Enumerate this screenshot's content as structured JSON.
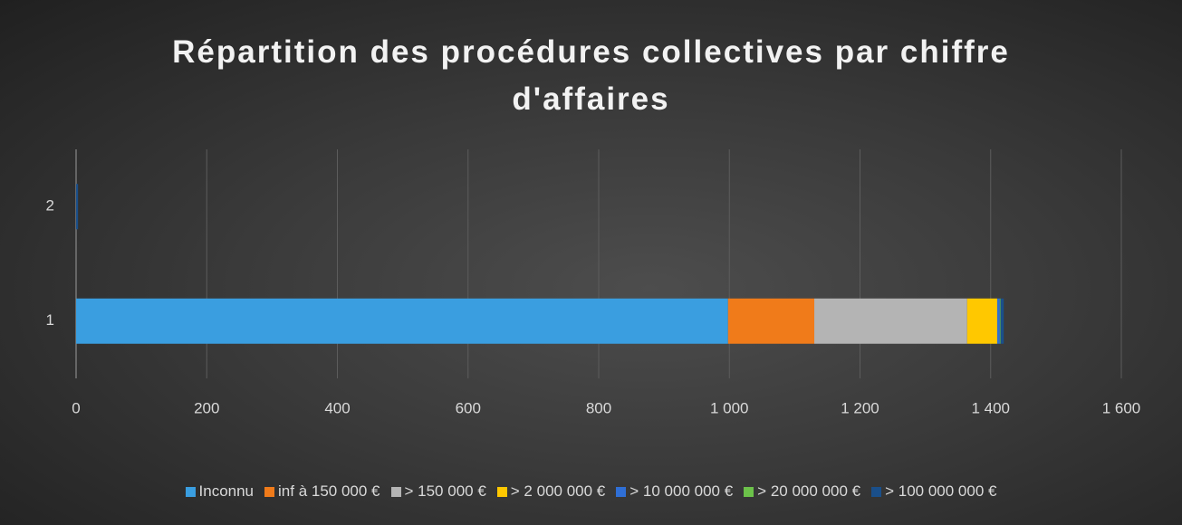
{
  "chart_data": {
    "type": "stacked-barh",
    "title": "Répartition des procédures collectives par chiffre d'affaires",
    "categories": [
      "1",
      "2"
    ],
    "series": [
      {
        "name": "Inconnu",
        "color": "#3a9ee0",
        "values": [
          998,
          0
        ]
      },
      {
        "name": "inf à 150 000 €",
        "color": "#f07b1a",
        "values": [
          132,
          0
        ]
      },
      {
        "name": "> 150 000 €",
        "color": "#b4b4b4",
        "values": [
          234,
          0
        ]
      },
      {
        "name": "> 2 000 000 €",
        "color": "#ffc800",
        "values": [
          46,
          0
        ]
      },
      {
        "name": "> 10 000 000 €",
        "color": "#2f6fd6",
        "values": [
          4,
          0
        ]
      },
      {
        "name": "> 20 000 000 €",
        "color": "#6cc24a",
        "values": [
          1,
          0
        ]
      },
      {
        "name": "> 100 000 000 €",
        "color": "#1a4f8a",
        "values": [
          5,
          3
        ]
      }
    ],
    "xlim": [
      0,
      1600
    ],
    "xticks": [
      0,
      200,
      400,
      600,
      800,
      {
        "value": 1000,
        "label": "1 000"
      },
      {
        "value": 1200,
        "label": "1 200"
      },
      {
        "value": 1400,
        "label": "1 400"
      },
      {
        "value": 1600,
        "label": "1 600"
      }
    ],
    "grid": true,
    "legend": "bottom"
  }
}
